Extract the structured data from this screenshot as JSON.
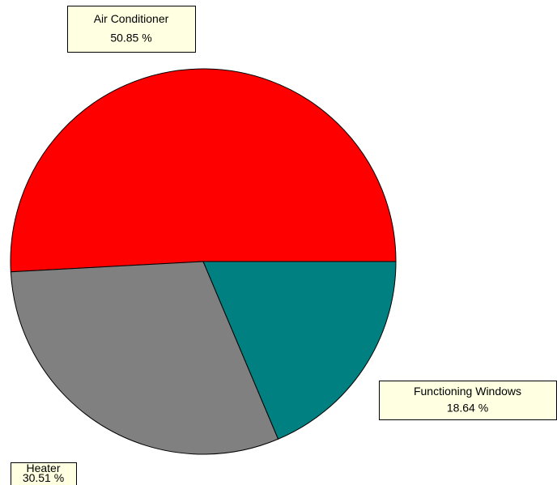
{
  "chart_data": {
    "type": "pie",
    "categories": [
      "Air Conditioner",
      "Heater",
      "Functioning Windows"
    ],
    "values": [
      50.85,
      30.51,
      18.64
    ],
    "value_labels": [
      "50.85 %",
      "30.51 %",
      "18.64 %"
    ],
    "colors": [
      "#ff0000",
      "#808080",
      "#008080"
    ]
  }
}
